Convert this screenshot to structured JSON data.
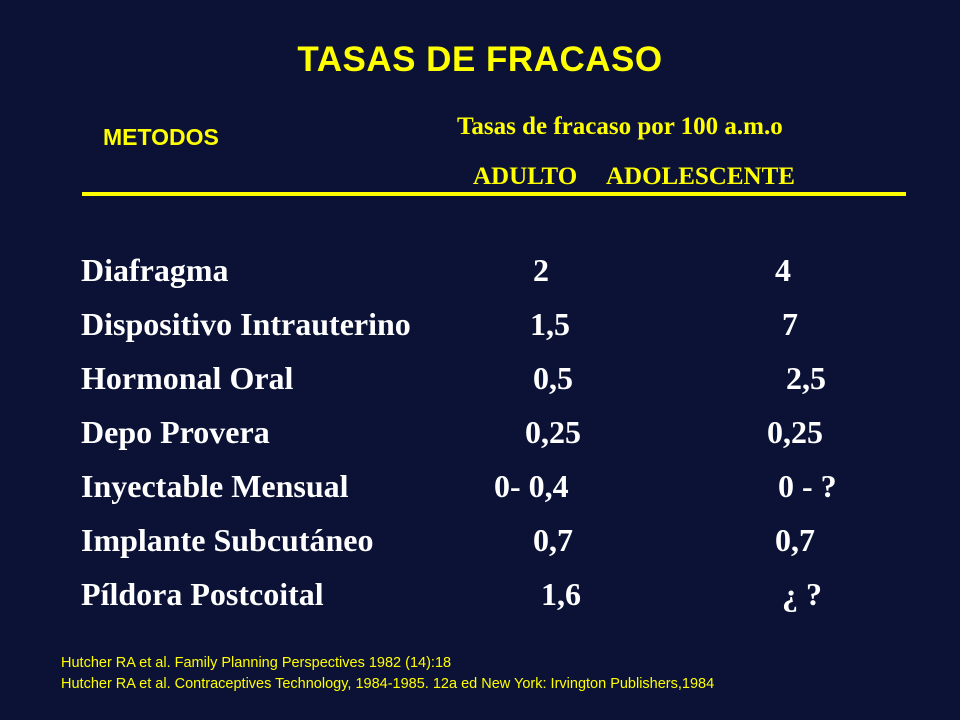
{
  "title": "TASAS DE FRACASO",
  "header": {
    "methods_label": "METODOS",
    "rates_label": "Tasas de fracaso por 100 a.m.o",
    "adult_label": "ADULTO",
    "adolescent_label": "ADOLESCENTE"
  },
  "rows": [
    {
      "method": "Diafragma",
      "adult": "2",
      "adolescent": "4"
    },
    {
      "method": "Dispositivo Intrauterino",
      "adult": "1,5",
      "adolescent": "7"
    },
    {
      "method": "Hormonal Oral",
      "adult": "0,5",
      "adolescent": "2,5"
    },
    {
      "method": "Depo Provera",
      "adult": "0,25",
      "adolescent": "0,25"
    },
    {
      "method": "Inyectable Mensual",
      "adult": "0- 0,4",
      "adolescent": "0 - ?"
    },
    {
      "method": "Implante Subcutáneo",
      "adult": "0,7",
      "adolescent": "0,7"
    },
    {
      "method": "Píldora Postcoital",
      "adult": "1,6",
      "adolescent": "¿ ?"
    }
  ],
  "references": [
    "Hutcher RA et al. Family Planning Perspectives 1982 (14):18",
    "Hutcher RA et al. Contraceptives Technology, 1984-1985. 12a ed New York: Irvington Publishers,1984"
  ],
  "colors": {
    "background": "#0b1236",
    "accent": "#ffff00",
    "body_text": "#ffffff"
  }
}
